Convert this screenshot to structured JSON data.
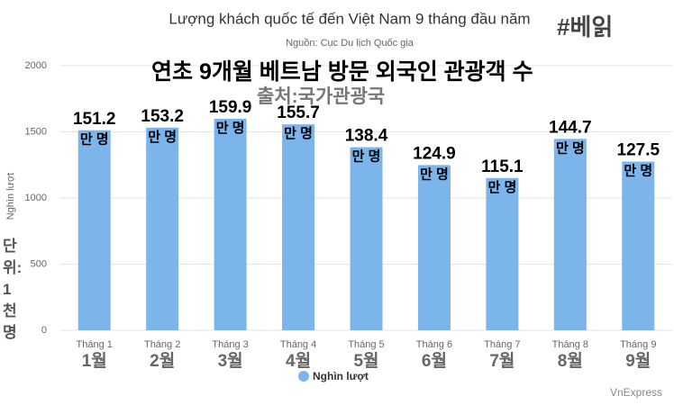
{
  "chart_data": {
    "type": "bar",
    "title": "Lượng khách quốc tế đến Việt Nam 9 tháng đầu năm",
    "subtitle": "Nguồn: Cục Du lịch Quốc gia",
    "y_label": "Nghìn lượt",
    "credit": "VnExpress",
    "hashtag": "#베읽",
    "overlay_title": "연초 9개월 베트남 방문 외국인 관광객 수",
    "overlay_source": "출처:국가관광국",
    "overlay_unit": "단위:1천명",
    "categories": [
      "Tháng 1",
      "Tháng 2",
      "Tháng 3",
      "Tháng 4",
      "Tháng 5",
      "Tháng 6",
      "Tháng 7",
      "Tháng 8",
      "Tháng 9"
    ],
    "categories_ko": [
      "1월",
      "2월",
      "3월",
      "4월",
      "5월",
      "6월",
      "7월",
      "8월",
      "9월"
    ],
    "series": [
      {
        "name": "Nghìn lượt",
        "color": "#7cb5ec",
        "values": [
          1512,
          1532,
          1599,
          1557,
          1384,
          1249,
          1151,
          1447,
          1275
        ],
        "value_labels": [
          "151.2",
          "153.2",
          "159.9",
          "155.7",
          "138.4",
          "124.9",
          "115.1",
          "144.7",
          "127.5"
        ]
      }
    ],
    "value_label_unit": "만 명",
    "ylim": [
      0,
      2000
    ],
    "yticks": [
      0,
      500,
      1000,
      1500,
      2000
    ],
    "grid": true
  }
}
